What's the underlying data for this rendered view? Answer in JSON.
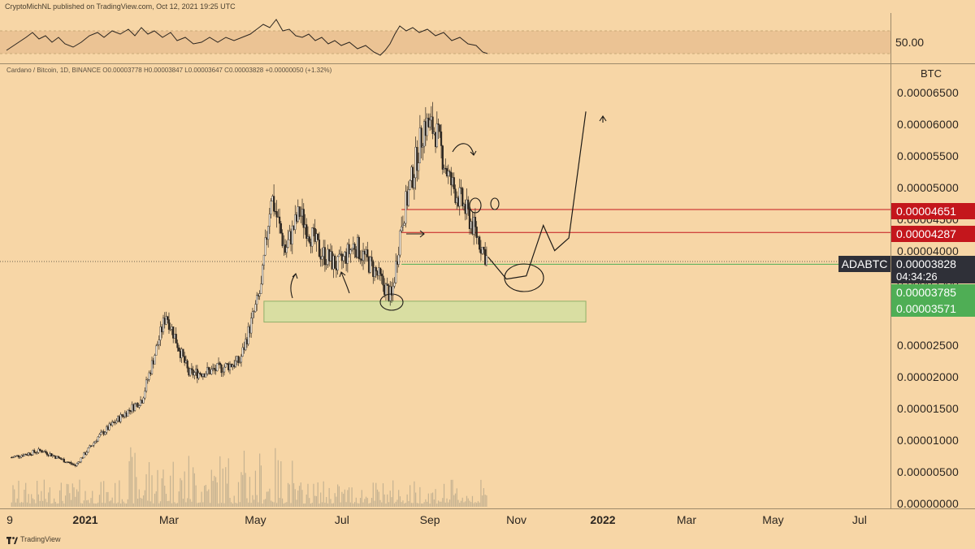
{
  "header": {
    "text": "CryptoMichNL published on TradingView.com, Oct 12, 2021 19:25 UTC"
  },
  "rsi": {
    "level_label": "50.00",
    "band_color": "#e9c090",
    "line_color": "#2c2620"
  },
  "legend": {
    "text": "Cardano / Bitcoin, 1D, BINANCE  O0.00003778  H0.00003847  L0.00003647  C0.00003828  +0.00000050 (+1.32%)"
  },
  "axis": {
    "unit": "BTC",
    "ticks": [
      "0.00006500",
      "0.00006000",
      "0.00005500",
      "0.00005000",
      "0.00004500",
      "0.00004000",
      "0.00003500",
      "0.00002500",
      "0.00002000",
      "0.00001500",
      "0.00001000",
      "0.00000500",
      "0.00000000"
    ]
  },
  "time_axis": {
    "labels": [
      {
        "text": "9",
        "bold": false
      },
      {
        "text": "2021",
        "bold": true
      },
      {
        "text": "Mar",
        "bold": false
      },
      {
        "text": "May",
        "bold": false
      },
      {
        "text": "Jul",
        "bold": false
      },
      {
        "text": "Sep",
        "bold": false
      },
      {
        "text": "Nov",
        "bold": false
      },
      {
        "text": "2022",
        "bold": true
      },
      {
        "text": "Mar",
        "bold": false
      },
      {
        "text": "May",
        "bold": false
      },
      {
        "text": "Jul",
        "bold": false
      }
    ]
  },
  "price_tags": {
    "resistance_1": "0.00004651",
    "resistance_2": "0.00004287",
    "current": "0.00003828",
    "symbol": "ADABTC",
    "countdown": "04:34:26",
    "support_1": "0.00003785",
    "support_2": "0.00003571"
  },
  "footer": {
    "brand": "TradingView"
  },
  "colors": {
    "background": "#f7d6a6",
    "resistance": "#c4161c",
    "support": "#4fae55",
    "support_zone": "#cfe0a0",
    "candle_up": "#f4efe6",
    "candle_down": "#2c2620",
    "volume": "#b8a98c"
  },
  "chart_data": {
    "type": "candlestick",
    "title": "Cardano / Bitcoin, 1D, BINANCE",
    "ylabel": "BTC",
    "xlabel": "",
    "ylim": [
      0,
      7e-05
    ],
    "legend": "none",
    "grid": false,
    "ohlc_last": {
      "open": 3.778e-05,
      "high": 3.847e-05,
      "low": 3.647e-05,
      "close": 3.828e-05,
      "change": 5e-07,
      "change_pct": 1.32
    },
    "close_path": [
      {
        "date": "2020-11-10",
        "close": 7.3e-06
      },
      {
        "date": "2020-12-01",
        "close": 8.4e-06
      },
      {
        "date": "2020-12-25",
        "close": 6e-06
      },
      {
        "date": "2021-01-10",
        "close": 1.05e-05
      },
      {
        "date": "2021-01-25",
        "close": 1.35e-05
      },
      {
        "date": "2021-02-10",
        "close": 1.65e-05
      },
      {
        "date": "2021-02-27",
        "close": 3e-05
      },
      {
        "date": "2021-03-15",
        "close": 2.05e-05
      },
      {
        "date": "2021-04-01",
        "close": 2.1e-05
      },
      {
        "date": "2021-04-20",
        "close": 2.25e-05
      },
      {
        "date": "2021-05-05",
        "close": 3.4e-05
      },
      {
        "date": "2021-05-12",
        "close": 4.9e-05
      },
      {
        "date": "2021-05-22",
        "close": 4e-05
      },
      {
        "date": "2021-06-01",
        "close": 4.6e-05
      },
      {
        "date": "2021-06-15",
        "close": 4e-05
      },
      {
        "date": "2021-06-28",
        "close": 3.75e-05
      },
      {
        "date": "2021-07-10",
        "close": 4.1e-05
      },
      {
        "date": "2021-07-25",
        "close": 3.65e-05
      },
      {
        "date": "2021-08-05",
        "close": 3.25e-05
      },
      {
        "date": "2021-08-12",
        "close": 4.45e-05
      },
      {
        "date": "2021-08-20",
        "close": 5.2e-05
      },
      {
        "date": "2021-08-28",
        "close": 6e-05
      },
      {
        "date": "2021-09-05",
        "close": 5.9e-05
      },
      {
        "date": "2021-09-15",
        "close": 5.1e-05
      },
      {
        "date": "2021-09-25",
        "close": 4.7e-05
      },
      {
        "date": "2021-10-05",
        "close": 4.2e-05
      },
      {
        "date": "2021-10-12",
        "close": 3.828e-05
      }
    ],
    "horizontal_levels": [
      {
        "value": 4.651e-05,
        "type": "resistance"
      },
      {
        "value": 4.287e-05,
        "type": "resistance"
      },
      {
        "value": 3.785e-05,
        "type": "support"
      },
      {
        "value": 3.571e-05,
        "type": "support"
      }
    ],
    "support_zone": {
      "from_date": "2021-05-07",
      "to_date": "2021-12-20",
      "low": 2.87e-05,
      "high": 3.2e-05
    },
    "projection_path": [
      {
        "date": "2021-10-12",
        "value": 3.9e-05
      },
      {
        "date": "2021-10-25",
        "value": 3.55e-05
      },
      {
        "date": "2021-11-08",
        "value": 3.6e-05
      },
      {
        "date": "2021-11-20",
        "value": 4.4e-05
      },
      {
        "date": "2021-11-28",
        "value": 4e-05
      },
      {
        "date": "2021-12-08",
        "value": 4.2e-05
      },
      {
        "date": "2021-12-20",
        "value": 6.2e-05
      }
    ],
    "rsi_reference": 50
  }
}
